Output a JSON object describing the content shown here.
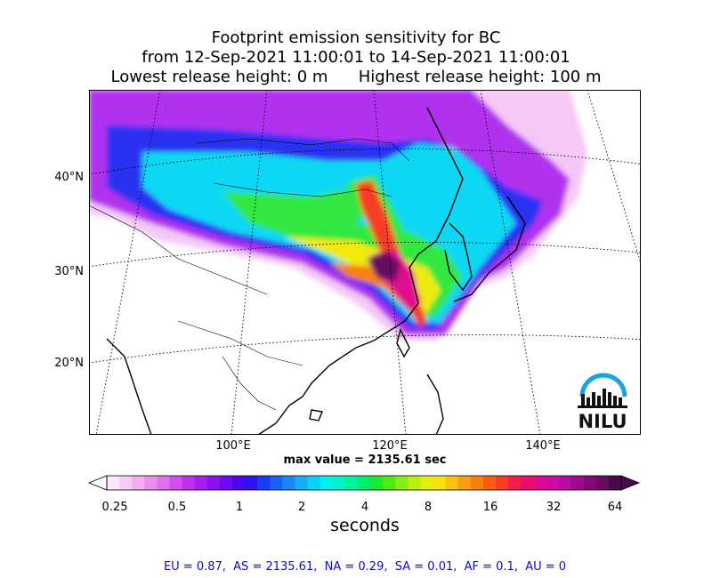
{
  "title": {
    "line1": "Footprint emission sensitivity for BC",
    "line2": "from 12-Sep-2021 11:00:01 to 14-Sep-2021 11:00:01",
    "line3": "Lowest release height: 0 m      Highest release height: 100 m"
  },
  "map": {
    "lat_labels": [
      "40°N",
      "30°N",
      "20°N"
    ],
    "lon_labels": [
      "100°E",
      "120°E",
      "140°E"
    ],
    "logo_text": "NILU",
    "colors": {
      "logo_blue": "#1aa3e0",
      "logo_dark": "#111111"
    }
  },
  "max_value": "max value = 2135.61 sec",
  "colorbar": {
    "tick_labels": [
      "0.25",
      "0.5",
      "1",
      "2",
      "4",
      "8",
      "16",
      "32",
      "64"
    ],
    "units": "seconds",
    "colors": [
      "#fde8fd",
      "#f7ccf7",
      "#f0aef3",
      "#ea8ff0",
      "#e070ee",
      "#d24cef",
      "#c030ef",
      "#a61fef",
      "#8a12ef",
      "#6c0cee",
      "#4a08ee",
      "#2a14f0",
      "#1a3cf4",
      "#1a62f6",
      "#1a88f8",
      "#14aef8",
      "#08d2f8",
      "#00f0ee",
      "#00f4c8",
      "#00f29c",
      "#00ee6c",
      "#18ea30",
      "#50ea10",
      "#88ec10",
      "#bcee10",
      "#e2ee10",
      "#f8e010",
      "#f8c010",
      "#f8a010",
      "#f88010",
      "#f85c14",
      "#f83c28",
      "#f41c48",
      "#ec0c6c",
      "#e00a8e",
      "#d00aa6",
      "#bc0aa6",
      "#a00a90",
      "#820a78",
      "#660a62",
      "#4a0a4a"
    ]
  },
  "footer": "EU = 0.87,  AS = 2135.61,  NA = 0.29,  SA = 0.01,  AF = 0.1,  AU = 0"
}
